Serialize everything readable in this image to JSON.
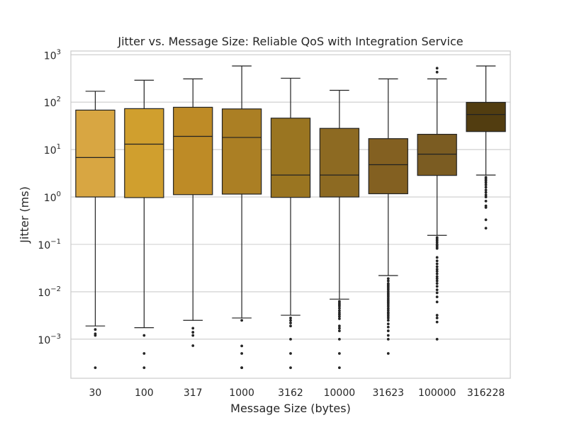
{
  "chart_data": {
    "type": "box",
    "title": "Jitter vs. Message Size: Reliable QoS with Integration Service",
    "xlabel": "Message Size (bytes)",
    "ylabel": "Jitter (ms)",
    "yscale": "log",
    "ylim": [
      0.00015,
      1200
    ],
    "grid": "y",
    "categories": [
      "30",
      "100",
      "317",
      "1000",
      "3162",
      "10000",
      "31623",
      "100000",
      "316228"
    ],
    "y_ticks": [
      {
        "value": 0.001,
        "base": "10",
        "exp": "−3"
      },
      {
        "value": 0.01,
        "base": "10",
        "exp": "−2"
      },
      {
        "value": 0.1,
        "base": "10",
        "exp": "−1"
      },
      {
        "value": 1,
        "base": "10",
        "exp": "0"
      },
      {
        "value": 10,
        "base": "10",
        "exp": "1"
      },
      {
        "value": 100,
        "base": "10",
        "exp": "2"
      },
      {
        "value": 1000,
        "base": "10",
        "exp": "3"
      }
    ],
    "colors": [
      "#D8A642",
      "#D09F2E",
      "#BE8B26",
      "#AB7F24",
      "#9A7521",
      "#8D6A22",
      "#836021",
      "#7B5C22",
      "#523D10"
    ],
    "boxes": [
      {
        "whislo": 0.0019,
        "q1": 1.0,
        "med": 6.8,
        "q3": 68,
        "whishi": 170,
        "fliers": [
          0.0016,
          0.0013,
          0.0012,
          0.00025
        ]
      },
      {
        "whislo": 0.00175,
        "q1": 0.97,
        "med": 13,
        "q3": 73,
        "whishi": 290,
        "fliers": [
          0.0012,
          0.0005,
          0.00025
        ]
      },
      {
        "whislo": 0.0025,
        "q1": 1.12,
        "med": 19,
        "q3": 78,
        "whishi": 310,
        "fliers": [
          0.0017,
          0.0014,
          0.0012,
          0.00073
        ]
      },
      {
        "whislo": 0.0028,
        "q1": 1.15,
        "med": 18,
        "q3": 72,
        "whishi": 580,
        "fliers": [
          0.0025,
          0.00072,
          0.0005,
          0.00025,
          0.00025
        ]
      },
      {
        "whislo": 0.0032,
        "q1": 0.98,
        "med": 2.9,
        "q3": 46,
        "whishi": 320,
        "fliers": [
          0.0028,
          0.0025,
          0.0022,
          0.0019,
          0.001,
          0.0005,
          0.00025
        ]
      },
      {
        "whislo": 0.007,
        "q1": 1.0,
        "med": 2.9,
        "q3": 28,
        "whishi": 178,
        "fliers": [
          0.0063,
          0.0058,
          0.0054,
          0.005,
          0.0045,
          0.004,
          0.0036,
          0.0033,
          0.003,
          0.0027,
          0.0019,
          0.0017,
          0.0015,
          0.001,
          0.0005,
          0.00025
        ]
      },
      {
        "whislo": 0.022,
        "q1": 1.17,
        "med": 4.8,
        "q3": 17,
        "whishi": 310,
        "fliers": [
          0.019,
          0.017,
          0.015,
          0.014,
          0.013,
          0.012,
          0.011,
          0.01,
          0.0092,
          0.0085,
          0.0078,
          0.0071,
          0.0065,
          0.006,
          0.0055,
          0.005,
          0.0045,
          0.0041,
          0.0037,
          0.0034,
          0.0031,
          0.0028,
          0.0025,
          0.0021,
          0.0018,
          0.0015,
          0.0012,
          0.001,
          0.0005
        ]
      },
      {
        "whislo": 0.155,
        "q1": 2.85,
        "med": 8.0,
        "q3": 21,
        "whishi": 310,
        "fliers": [
          520,
          430,
          0.14,
          0.13,
          0.12,
          0.11,
          0.1,
          0.095,
          0.088,
          0.082,
          0.053,
          0.045,
          0.039,
          0.034,
          0.03,
          0.027,
          0.024,
          0.021,
          0.019,
          0.017,
          0.015,
          0.013,
          0.011,
          0.0095,
          0.0078,
          0.0061,
          0.0032,
          0.0028,
          0.0023,
          0.001
        ]
      },
      {
        "whislo": 2.9,
        "q1": 24,
        "med": 55,
        "q3": 99,
        "whishi": 580,
        "fliers": [
          2.6,
          2.4,
          2.2,
          2.0,
          1.8,
          1.6,
          1.4,
          1.25,
          1.1,
          1.0,
          0.82,
          0.65,
          0.6,
          0.33,
          0.22
        ]
      }
    ]
  }
}
